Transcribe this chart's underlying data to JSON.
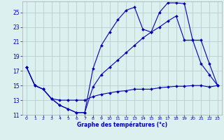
{
  "xlabel": "Graphe des températures (°c)",
  "bg_color": "#ddf0f0",
  "grid_color": "#b0c8c8",
  "line_color": "#0000bb",
  "ylim": [
    11,
    26.5
  ],
  "xlim": [
    -0.5,
    23.5
  ],
  "yticks": [
    11,
    13,
    15,
    17,
    19,
    21,
    23,
    25
  ],
  "xticks": [
    0,
    1,
    2,
    3,
    4,
    5,
    6,
    7,
    8,
    9,
    10,
    11,
    12,
    13,
    14,
    15,
    16,
    17,
    18,
    19,
    20,
    21,
    22,
    23
  ],
  "line1_x": [
    0,
    1,
    2,
    3,
    4,
    5,
    6,
    7,
    8,
    9,
    10,
    11,
    12,
    13,
    14,
    15,
    16,
    17,
    18,
    19,
    20,
    21,
    22,
    23
  ],
  "line1_y": [
    17.5,
    15.0,
    14.5,
    13.2,
    12.3,
    11.8,
    11.3,
    11.3,
    17.3,
    20.5,
    22.3,
    24.0,
    25.3,
    25.7,
    22.7,
    22.3,
    25.0,
    26.3,
    26.3,
    26.2,
    21.2,
    18.0,
    16.5,
    15.0
  ],
  "line2_x": [
    0,
    1,
    2,
    3,
    4,
    5,
    6,
    7,
    8,
    9,
    10,
    11,
    12,
    13,
    14,
    15,
    16,
    17,
    18,
    19,
    20,
    21,
    22,
    23
  ],
  "line2_y": [
    17.5,
    15.0,
    14.5,
    13.2,
    12.3,
    11.8,
    11.3,
    11.3,
    14.8,
    16.5,
    17.5,
    18.5,
    19.5,
    20.5,
    21.5,
    22.3,
    23.0,
    23.8,
    24.5,
    21.2,
    21.2,
    21.2,
    18.0,
    15.0
  ],
  "line3_x": [
    0,
    1,
    2,
    3,
    4,
    5,
    6,
    7,
    8,
    9,
    10,
    11,
    12,
    13,
    14,
    15,
    16,
    17,
    18,
    19,
    20,
    21,
    22,
    23
  ],
  "line3_y": [
    17.5,
    15.0,
    14.5,
    13.2,
    13.0,
    13.0,
    13.0,
    13.0,
    13.5,
    13.8,
    14.0,
    14.2,
    14.3,
    14.5,
    14.5,
    14.5,
    14.7,
    14.8,
    14.9,
    14.9,
    15.0,
    15.0,
    14.8,
    15.0
  ]
}
